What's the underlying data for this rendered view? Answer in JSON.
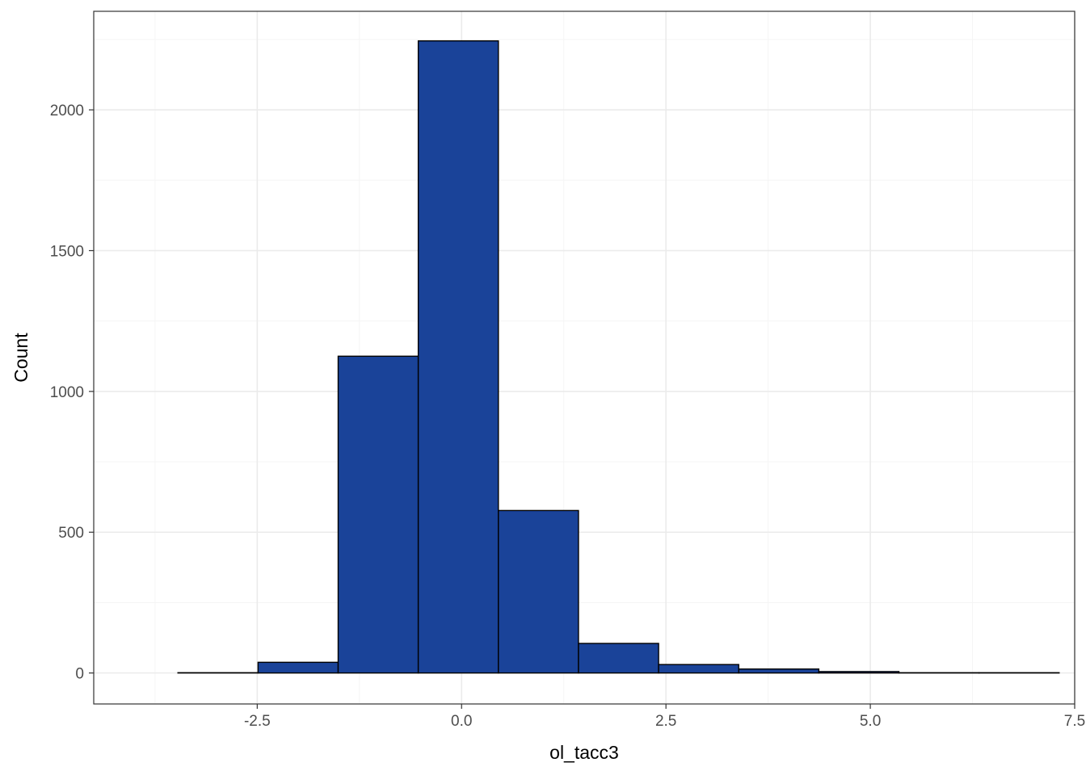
{
  "chart_data": {
    "type": "histogram",
    "xlabel": "ol_tacc3",
    "ylabel": "Count",
    "title": "",
    "xlim": [
      -4.5,
      7.5
    ],
    "ylim": [
      -110,
      2350
    ],
    "x_ticks": [
      -2.5,
      0.0,
      2.5,
      5.0,
      7.5
    ],
    "x_tick_labels": [
      "-2.5",
      "0.0",
      "2.5",
      "5.0",
      "7.5"
    ],
    "y_ticks": [
      0,
      500,
      1000,
      1500,
      2000
    ],
    "y_tick_labels": [
      "0",
      "500",
      "1000",
      "1500",
      "2000"
    ],
    "grid": true,
    "bins": [
      {
        "x0": -4.45,
        "x1": -3.47,
        "count": 0
      },
      {
        "x0": -3.47,
        "x1": -2.49,
        "count": 1
      },
      {
        "x0": -2.49,
        "x1": -1.51,
        "count": 38
      },
      {
        "x0": -1.51,
        "x1": -0.53,
        "count": 1125
      },
      {
        "x0": -0.53,
        "x1": 0.45,
        "count": 2245
      },
      {
        "x0": 0.45,
        "x1": 1.43,
        "count": 577
      },
      {
        "x0": 1.43,
        "x1": 2.41,
        "count": 105
      },
      {
        "x0": 2.41,
        "x1": 3.39,
        "count": 30
      },
      {
        "x0": 3.39,
        "x1": 4.37,
        "count": 14
      },
      {
        "x0": 4.37,
        "x1": 5.35,
        "count": 5
      },
      {
        "x0": 5.35,
        "x1": 6.33,
        "count": 1
      },
      {
        "x0": 6.33,
        "x1": 7.31,
        "count": 1
      }
    ],
    "colors": {
      "bar_fill": "#1A4399",
      "bar_stroke": "#000000",
      "panel_border": "#333333",
      "grid_major": "#EBEBEB",
      "grid_minor": "#F5F5F5"
    }
  }
}
